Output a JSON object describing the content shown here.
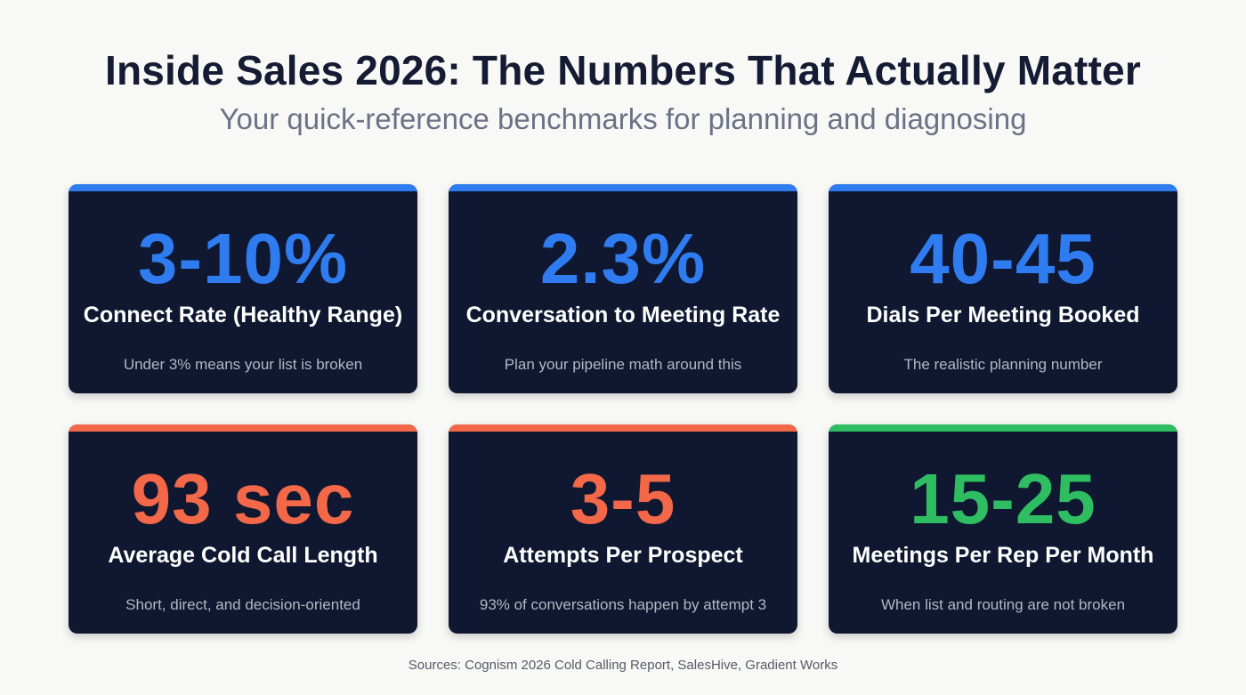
{
  "header": {
    "title": "Inside Sales 2026: The Numbers That Actually Matter",
    "subtitle": "Your quick-reference benchmarks for planning and diagnosing"
  },
  "colors": {
    "blue": "#2f7cf0",
    "red": "#f26849",
    "green": "#2fbd62",
    "card_bg": "#0f1830"
  },
  "cards": [
    {
      "value": "3-10%",
      "label": "Connect Rate (Healthy Range)",
      "note": "Under 3% means your list is broken",
      "accent": "#2f7cf0"
    },
    {
      "value": "2.3%",
      "label": "Conversation to Meeting Rate",
      "note": "Plan your pipeline math around this",
      "accent": "#2f7cf0"
    },
    {
      "value": "40-45",
      "label": "Dials Per Meeting Booked",
      "note": "The realistic planning number",
      "accent": "#2f7cf0"
    },
    {
      "value": "93 sec",
      "label": "Average Cold Call Length",
      "note": "Short, direct, and decision-oriented",
      "accent": "#f26849"
    },
    {
      "value": "3-5",
      "label": "Attempts Per Prospect",
      "note": "93% of conversations happen by attempt 3",
      "accent": "#f26849"
    },
    {
      "value": "15-25",
      "label": "Meetings Per Rep Per Month",
      "note": "When list and routing are not broken",
      "accent": "#2fbd62"
    }
  ],
  "footer": {
    "sources": "Sources: Cognism 2026 Cold Calling Report, SalesHive, Gradient Works"
  }
}
